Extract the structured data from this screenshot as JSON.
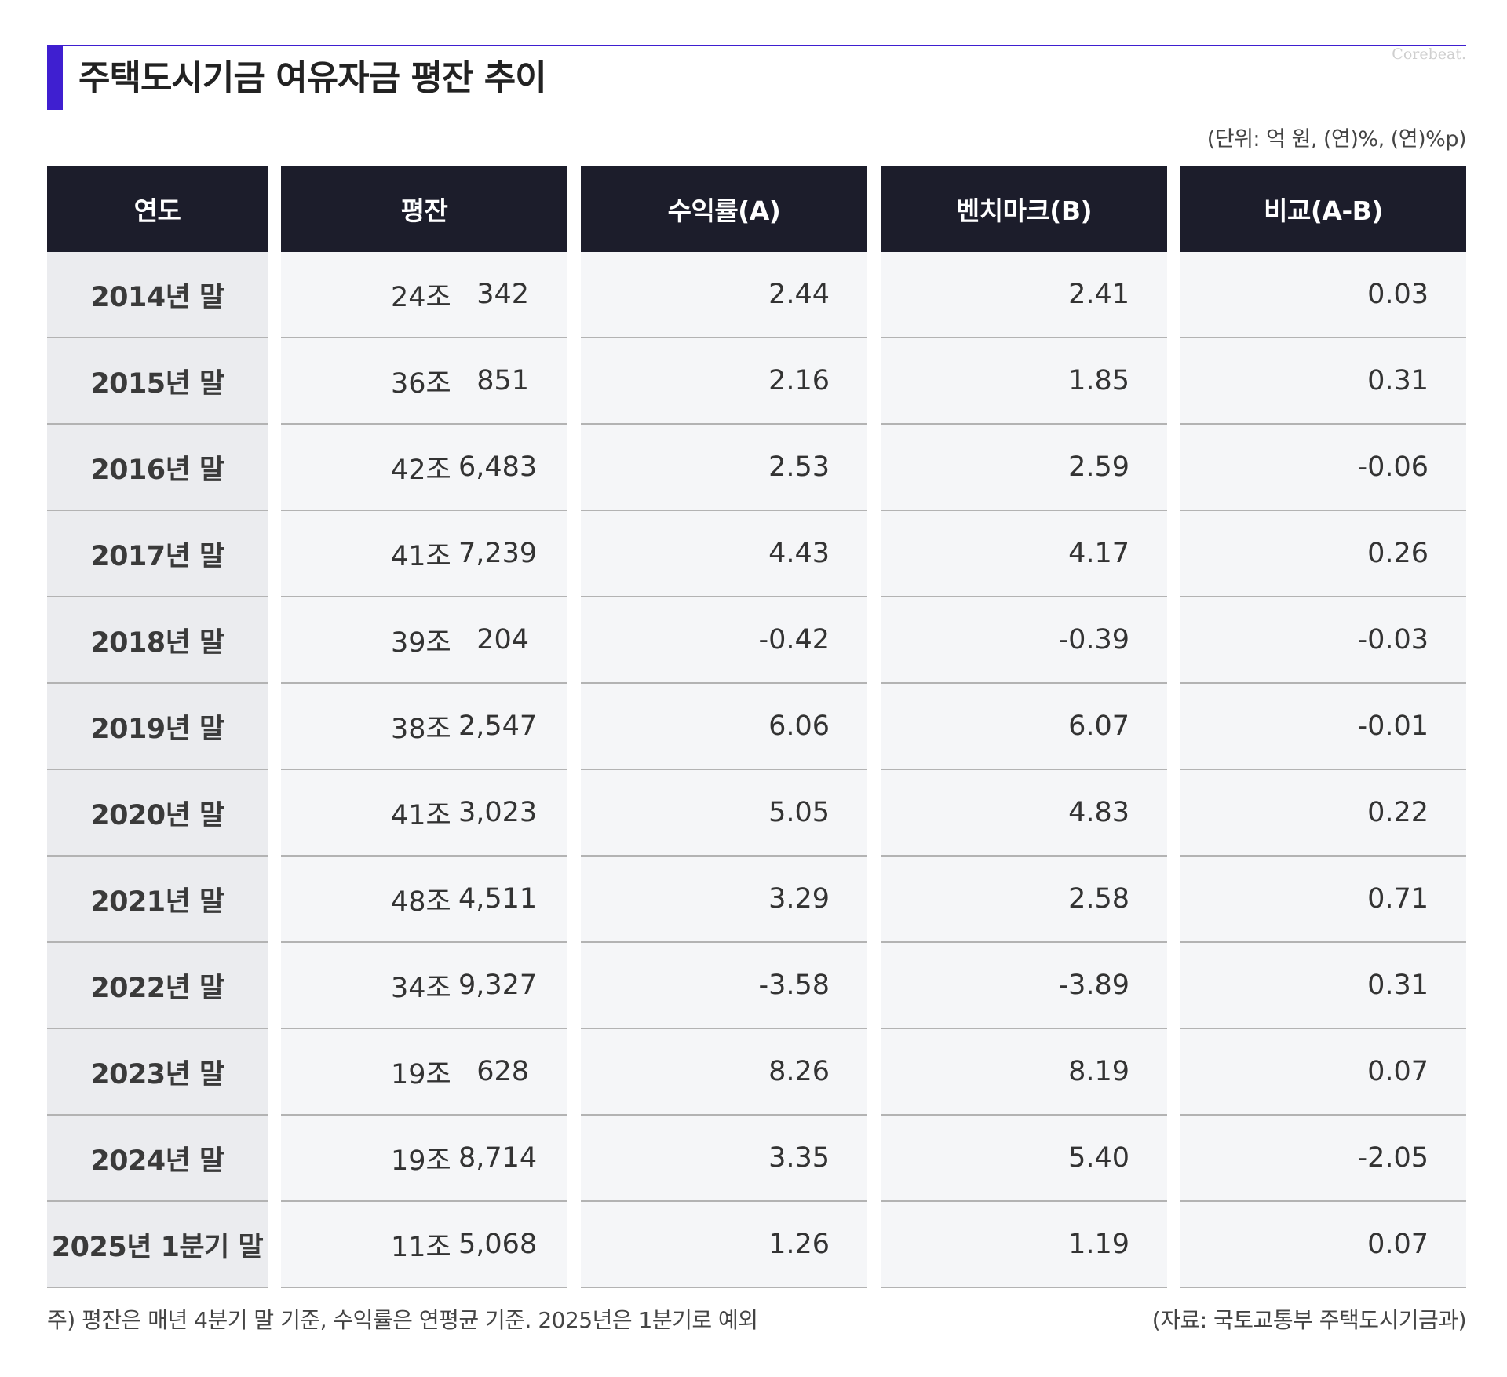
{
  "header": {
    "title": "주택도시기금 여유자금 평잔 추이",
    "watermark": "Corebeat.",
    "unit": "(단위: 억 원, (연)%, (연)%p)"
  },
  "chart_data": {
    "type": "table",
    "title": "주택도시기금 여유자금 평잔 추이",
    "columns": [
      "연도",
      "평잔",
      "수익률(A)",
      "벤치마크(B)",
      "비교(A-B)"
    ],
    "rows": [
      {
        "year": "2014년 말",
        "jo": "24조",
        "eok": "342",
        "a": "2.44",
        "b": "2.41",
        "diff": "0.03"
      },
      {
        "year": "2015년 말",
        "jo": "36조",
        "eok": "851",
        "a": "2.16",
        "b": "1.85",
        "diff": "0.31"
      },
      {
        "year": "2016년 말",
        "jo": "42조",
        "eok": "6,483",
        "a": "2.53",
        "b": "2.59",
        "diff": "-0.06"
      },
      {
        "year": "2017년 말",
        "jo": "41조",
        "eok": "7,239",
        "a": "4.43",
        "b": "4.17",
        "diff": "0.26"
      },
      {
        "year": "2018년 말",
        "jo": "39조",
        "eok": "204",
        "a": "-0.42",
        "b": "-0.39",
        "diff": "-0.03"
      },
      {
        "year": "2019년 말",
        "jo": "38조",
        "eok": "2,547",
        "a": "6.06",
        "b": "6.07",
        "diff": "-0.01"
      },
      {
        "year": "2020년 말",
        "jo": "41조",
        "eok": "3,023",
        "a": "5.05",
        "b": "4.83",
        "diff": "0.22"
      },
      {
        "year": "2021년 말",
        "jo": "48조",
        "eok": "4,511",
        "a": "3.29",
        "b": "2.58",
        "diff": "0.71"
      },
      {
        "year": "2022년 말",
        "jo": "34조",
        "eok": "9,327",
        "a": "-3.58",
        "b": "-3.89",
        "diff": "0.31"
      },
      {
        "year": "2023년 말",
        "jo": "19조",
        "eok": "628",
        "a": "8.26",
        "b": "8.19",
        "diff": "0.07"
      },
      {
        "year": "2024년 말",
        "jo": "19조",
        "eok": "8,714",
        "a": "3.35",
        "b": "5.40",
        "diff": "-2.05"
      },
      {
        "year": "2025년 1분기 말",
        "jo": "11조",
        "eok": "5,068",
        "a": "1.26",
        "b": "1.19",
        "diff": "0.07"
      }
    ]
  },
  "footer": {
    "note": "주) 평잔은 매년 4분기 말 기준, 수익률은 연평균 기준. 2025년은 1분기로 예외",
    "source": "(자료: 국토교통부 주택도시기금과)"
  },
  "colors": {
    "accent": "#3f1fd0",
    "header_bg": "#1c1d2b",
    "year_cell_bg": "#ebecef",
    "value_cell_bg": "#f5f6f8"
  }
}
